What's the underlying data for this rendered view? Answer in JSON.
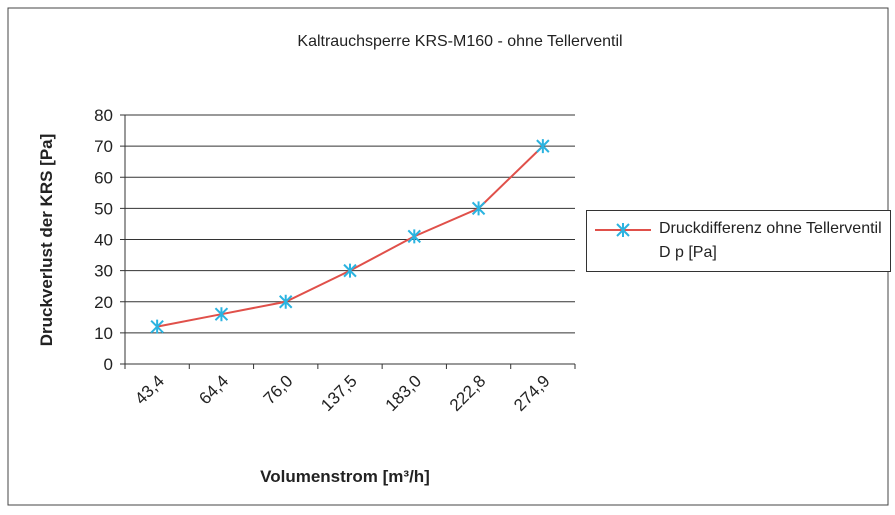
{
  "chart_data": {
    "type": "line",
    "title": "Kaltrauchsperre KRS-M160 - ohne Tellerventil",
    "x_label": "Volumenstrom [m³/h]",
    "y_label": "Druckverlust der KRS [Pa]",
    "categories": [
      "43,4",
      "64,4",
      "76,0",
      "137,5",
      "183,0",
      "222,8",
      "274,9"
    ],
    "series": [
      {
        "name": "Druckdifferenz ohne Tellerventil D p [Pa]",
        "color": "#e0504a",
        "marker_color": "#2bb3e0",
        "values": [
          12,
          16,
          20,
          30,
          41,
          50,
          70
        ]
      }
    ],
    "ylim": [
      0,
      80
    ],
    "yticks": [
      0,
      10,
      20,
      30,
      40,
      50,
      60,
      70,
      80
    ],
    "grid": true,
    "legend": "right"
  }
}
